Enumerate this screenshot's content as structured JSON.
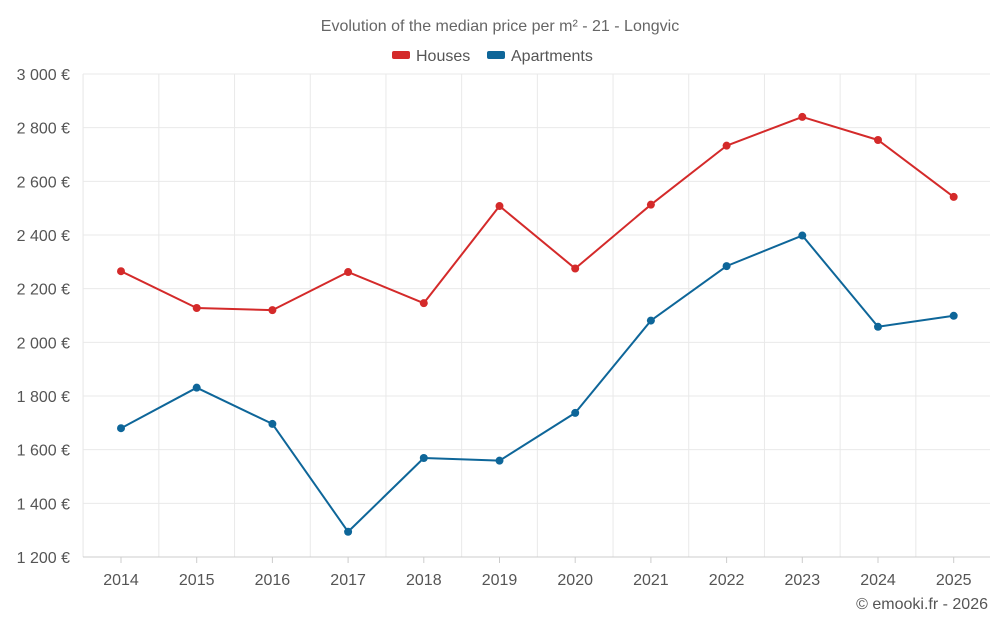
{
  "chart_data": {
    "type": "line",
    "title": "Evolution of the median price per m² - 21 - Longvic",
    "categories": [
      "2014",
      "2015",
      "2016",
      "2017",
      "2018",
      "2019",
      "2020",
      "2021",
      "2022",
      "2023",
      "2024",
      "2025"
    ],
    "series": [
      {
        "name": "Houses",
        "color": "#d42a2a",
        "values": [
          2265,
          2128,
          2120,
          2262,
          2146,
          2508,
          2275,
          2513,
          2733,
          2840,
          2754,
          2542
        ]
      },
      {
        "name": "Apartments",
        "color": "#0e6699",
        "values": [
          1680,
          1831,
          1696,
          1294,
          1569,
          1559,
          1737,
          2081,
          2284,
          2398,
          2058,
          2099
        ]
      }
    ],
    "ylim": [
      1200,
      3000
    ],
    "yticks": [
      1200,
      1400,
      1600,
      1800,
      2000,
      2200,
      2400,
      2600,
      2800,
      3000
    ],
    "ytick_labels": [
      "1 200 €",
      "1 400 €",
      "1 600 €",
      "1 800 €",
      "2 000 €",
      "2 200 €",
      "2 400 €",
      "2 600 €",
      "2 800 €",
      "3 000 €"
    ],
    "xlabel": "",
    "ylabel": "",
    "grid": true,
    "legend": "top-center"
  },
  "credit": "© emooki.fr - 2026"
}
